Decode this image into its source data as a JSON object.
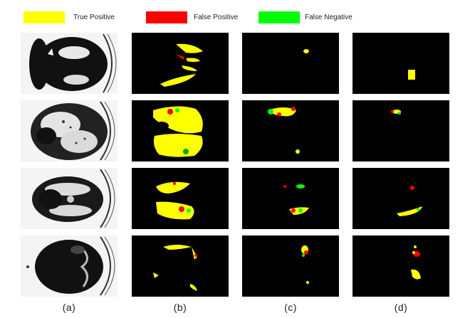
{
  "legend": {
    "items": [
      {
        "label": "True Positive",
        "color": "#ffff00"
      },
      {
        "label": "False Positive",
        "color": "#ff0000"
      },
      {
        "label": "False Negative",
        "color": "#00ff00"
      }
    ]
  },
  "columns": [
    "(a)",
    "(b)",
    "(c)",
    "(d)"
  ],
  "colors": {
    "background": "#000000",
    "scan_bg": "#f4f4f4"
  }
}
